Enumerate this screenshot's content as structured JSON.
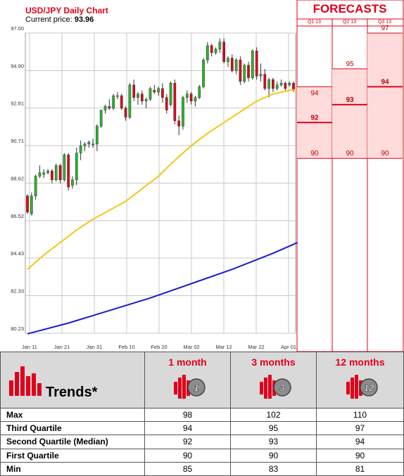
{
  "header": {
    "title": "USD/JPY Daily Chart",
    "price_label": "Current price:",
    "price_value": "93.96"
  },
  "forecast": {
    "title": "FORECASTS",
    "quarters": [
      "Q1 13",
      "Q2 13",
      "Q3 13"
    ],
    "columns": [
      {
        "quarter": "Q1 13",
        "high": 94,
        "mid": 92,
        "low": 90
      },
      {
        "quarter": "Q2 13",
        "high": 95,
        "mid": 93,
        "low": 90
      },
      {
        "quarter": "Q3 13",
        "high": 97,
        "mid": 94,
        "low": 90
      }
    ],
    "colors": {
      "shade": "#ffdcdc",
      "line": "#e0001b",
      "text": "#c00000"
    }
  },
  "trends": {
    "title": "Trends*",
    "columns": [
      "1 month",
      "3 months",
      "12 months"
    ],
    "badges": [
      "1",
      "3",
      "12"
    ],
    "rows": [
      {
        "label": "Max",
        "values": [
          "98",
          "102",
          "110"
        ]
      },
      {
        "label": "Third Quartile",
        "values": [
          "94",
          "95",
          "97"
        ]
      },
      {
        "label": "Second Quartile (Median)",
        "values": [
          "92",
          "93",
          "94"
        ]
      },
      {
        "label": "First Quartile",
        "values": [
          "90",
          "90",
          "90"
        ]
      },
      {
        "label": "Min",
        "values": [
          "85",
          "83",
          "81"
        ]
      }
    ]
  },
  "chart_data": {
    "type": "candlestick",
    "title": "USD/JPY Daily Chart",
    "xlabel": "",
    "ylabel": "",
    "ylim": [
      80.23,
      97.0
    ],
    "yticks": [
      "97.00",
      "94.90",
      "92.81",
      "90.71",
      "88.62",
      "86.52",
      "84.43",
      "82.33",
      "80.23"
    ],
    "xticks": [
      "Jan 11",
      "Jan 21",
      "Jan 31",
      "Feb 10",
      "Feb 20",
      "Mar 02",
      "Mar 12",
      "Mar 22",
      "Apr 01"
    ],
    "grid": true,
    "colors": {
      "up": "#2db52d",
      "down": "#e0001b",
      "ma_short": "#f5c518",
      "ma_long": "#1a1ad6"
    },
    "candles": [
      {
        "o": 87.9,
        "h": 88.0,
        "l": 86.9,
        "c": 87.0
      },
      {
        "o": 86.9,
        "h": 88.1,
        "l": 86.8,
        "c": 87.9
      },
      {
        "o": 87.9,
        "h": 89.1,
        "l": 87.7,
        "c": 89.0
      },
      {
        "o": 89.0,
        "h": 89.6,
        "l": 88.9,
        "c": 89.2
      },
      {
        "o": 89.1,
        "h": 89.4,
        "l": 88.9,
        "c": 89.2
      },
      {
        "o": 89.2,
        "h": 89.4,
        "l": 89.1,
        "c": 89.3
      },
      {
        "o": 89.3,
        "h": 89.4,
        "l": 88.6,
        "c": 88.8
      },
      {
        "o": 88.8,
        "h": 89.7,
        "l": 88.7,
        "c": 89.6
      },
      {
        "o": 89.6,
        "h": 89.7,
        "l": 88.6,
        "c": 88.8
      },
      {
        "o": 88.8,
        "h": 90.3,
        "l": 88.7,
        "c": 90.2
      },
      {
        "o": 90.2,
        "h": 90.3,
        "l": 88.2,
        "c": 88.4
      },
      {
        "o": 88.5,
        "h": 89.0,
        "l": 88.3,
        "c": 88.8
      },
      {
        "o": 88.8,
        "h": 90.6,
        "l": 88.5,
        "c": 90.3
      },
      {
        "o": 90.3,
        "h": 91.0,
        "l": 89.9,
        "c": 90.7
      },
      {
        "o": 90.7,
        "h": 90.9,
        "l": 90.4,
        "c": 90.8
      },
      {
        "o": 90.8,
        "h": 91.0,
        "l": 90.6,
        "c": 90.9
      },
      {
        "o": 90.8,
        "h": 91.1,
        "l": 90.6,
        "c": 90.8
      },
      {
        "o": 90.8,
        "h": 91.9,
        "l": 90.4,
        "c": 91.8
      },
      {
        "o": 91.8,
        "h": 92.7,
        "l": 91.7,
        "c": 92.7
      },
      {
        "o": 92.7,
        "h": 93.0,
        "l": 92.5,
        "c": 92.9
      },
      {
        "o": 92.9,
        "h": 93.3,
        "l": 92.7,
        "c": 92.8
      },
      {
        "o": 92.8,
        "h": 93.6,
        "l": 92.7,
        "c": 93.5
      },
      {
        "o": 93.5,
        "h": 93.7,
        "l": 93.3,
        "c": 93.5
      },
      {
        "o": 93.5,
        "h": 93.6,
        "l": 92.7,
        "c": 92.8
      },
      {
        "o": 92.8,
        "h": 92.9,
        "l": 92.1,
        "c": 92.3
      },
      {
        "o": 92.3,
        "h": 94.2,
        "l": 92.2,
        "c": 94.1
      },
      {
        "o": 94.1,
        "h": 94.4,
        "l": 93.2,
        "c": 93.4
      },
      {
        "o": 93.4,
        "h": 93.7,
        "l": 93.0,
        "c": 93.6
      },
      {
        "o": 93.6,
        "h": 93.8,
        "l": 93.0,
        "c": 93.2
      },
      {
        "o": 93.2,
        "h": 93.4,
        "l": 92.8,
        "c": 93.3
      },
      {
        "o": 93.3,
        "h": 94.0,
        "l": 93.2,
        "c": 93.9
      },
      {
        "o": 93.8,
        "h": 94.1,
        "l": 93.6,
        "c": 93.7
      },
      {
        "o": 93.7,
        "h": 94.0,
        "l": 93.5,
        "c": 93.9
      },
      {
        "o": 93.9,
        "h": 94.2,
        "l": 93.1,
        "c": 93.4
      },
      {
        "o": 93.4,
        "h": 93.6,
        "l": 92.5,
        "c": 92.7
      },
      {
        "o": 93.0,
        "h": 94.3,
        "l": 92.9,
        "c": 94.2
      },
      {
        "o": 94.2,
        "h": 94.4,
        "l": 91.9,
        "c": 92.1
      },
      {
        "o": 92.1,
        "h": 92.4,
        "l": 91.3,
        "c": 91.8
      },
      {
        "o": 91.8,
        "h": 93.5,
        "l": 91.6,
        "c": 93.4
      },
      {
        "o": 93.4,
        "h": 93.8,
        "l": 93.1,
        "c": 93.6
      },
      {
        "o": 93.6,
        "h": 93.7,
        "l": 93.0,
        "c": 93.2
      },
      {
        "o": 93.2,
        "h": 93.5,
        "l": 92.9,
        "c": 93.4
      },
      {
        "o": 93.4,
        "h": 94.1,
        "l": 93.3,
        "c": 94.0
      },
      {
        "o": 94.0,
        "h": 95.6,
        "l": 93.9,
        "c": 95.5
      },
      {
        "o": 95.5,
        "h": 96.5,
        "l": 95.3,
        "c": 96.3
      },
      {
        "o": 96.3,
        "h": 96.4,
        "l": 95.7,
        "c": 95.9
      },
      {
        "o": 95.9,
        "h": 96.2,
        "l": 95.8,
        "c": 96.1
      },
      {
        "o": 96.1,
        "h": 96.7,
        "l": 95.9,
        "c": 96.5
      },
      {
        "o": 96.5,
        "h": 96.7,
        "l": 95.3,
        "c": 95.4
      },
      {
        "o": 95.4,
        "h": 95.7,
        "l": 95.1,
        "c": 95.6
      },
      {
        "o": 95.6,
        "h": 95.8,
        "l": 94.8,
        "c": 94.9
      },
      {
        "o": 94.9,
        "h": 95.6,
        "l": 94.7,
        "c": 95.5
      },
      {
        "o": 95.5,
        "h": 95.7,
        "l": 94.1,
        "c": 94.3
      },
      {
        "o": 94.3,
        "h": 95.3,
        "l": 94.2,
        "c": 95.2
      },
      {
        "o": 95.2,
        "h": 95.4,
        "l": 94.3,
        "c": 94.5
      },
      {
        "o": 94.5,
        "h": 96.1,
        "l": 94.4,
        "c": 96.0
      },
      {
        "o": 96.0,
        "h": 96.2,
        "l": 94.4,
        "c": 94.6
      },
      {
        "o": 94.6,
        "h": 95.3,
        "l": 94.3,
        "c": 94.7
      },
      {
        "o": 94.7,
        "h": 95.0,
        "l": 93.8,
        "c": 93.9
      },
      {
        "o": 93.9,
        "h": 94.5,
        "l": 93.4,
        "c": 94.4
      },
      {
        "o": 94.4,
        "h": 94.5,
        "l": 93.7,
        "c": 93.9
      },
      {
        "o": 93.9,
        "h": 94.3,
        "l": 93.8,
        "c": 94.1
      },
      {
        "o": 94.1,
        "h": 94.4,
        "l": 94.0,
        "c": 94.2
      },
      {
        "o": 94.2,
        "h": 94.3,
        "l": 93.8,
        "c": 93.9
      },
      {
        "o": 94.1,
        "h": 94.3,
        "l": 94.0,
        "c": 94.2
      },
      {
        "o": 94.2,
        "h": 94.3,
        "l": 93.7,
        "c": 93.8
      }
    ],
    "ma_short": [
      [
        0,
        83.8
      ],
      [
        4,
        84.6
      ],
      [
        8,
        85.3
      ],
      [
        12,
        86.0
      ],
      [
        16,
        86.6
      ],
      [
        20,
        87.1
      ],
      [
        24,
        87.6
      ],
      [
        28,
        88.3
      ],
      [
        32,
        89.0
      ],
      [
        36,
        89.9
      ],
      [
        40,
        90.7
      ],
      [
        44,
        91.4
      ],
      [
        48,
        92.0
      ],
      [
        52,
        92.6
      ],
      [
        56,
        93.2
      ],
      [
        60,
        93.6
      ],
      [
        64,
        93.8
      ],
      [
        66,
        93.85
      ]
    ],
    "ma_long": [
      [
        0,
        80.2
      ],
      [
        10,
        80.8
      ],
      [
        20,
        81.5
      ],
      [
        30,
        82.2
      ],
      [
        40,
        83.0
      ],
      [
        50,
        83.8
      ],
      [
        60,
        84.7
      ],
      [
        66,
        85.3
      ]
    ]
  }
}
